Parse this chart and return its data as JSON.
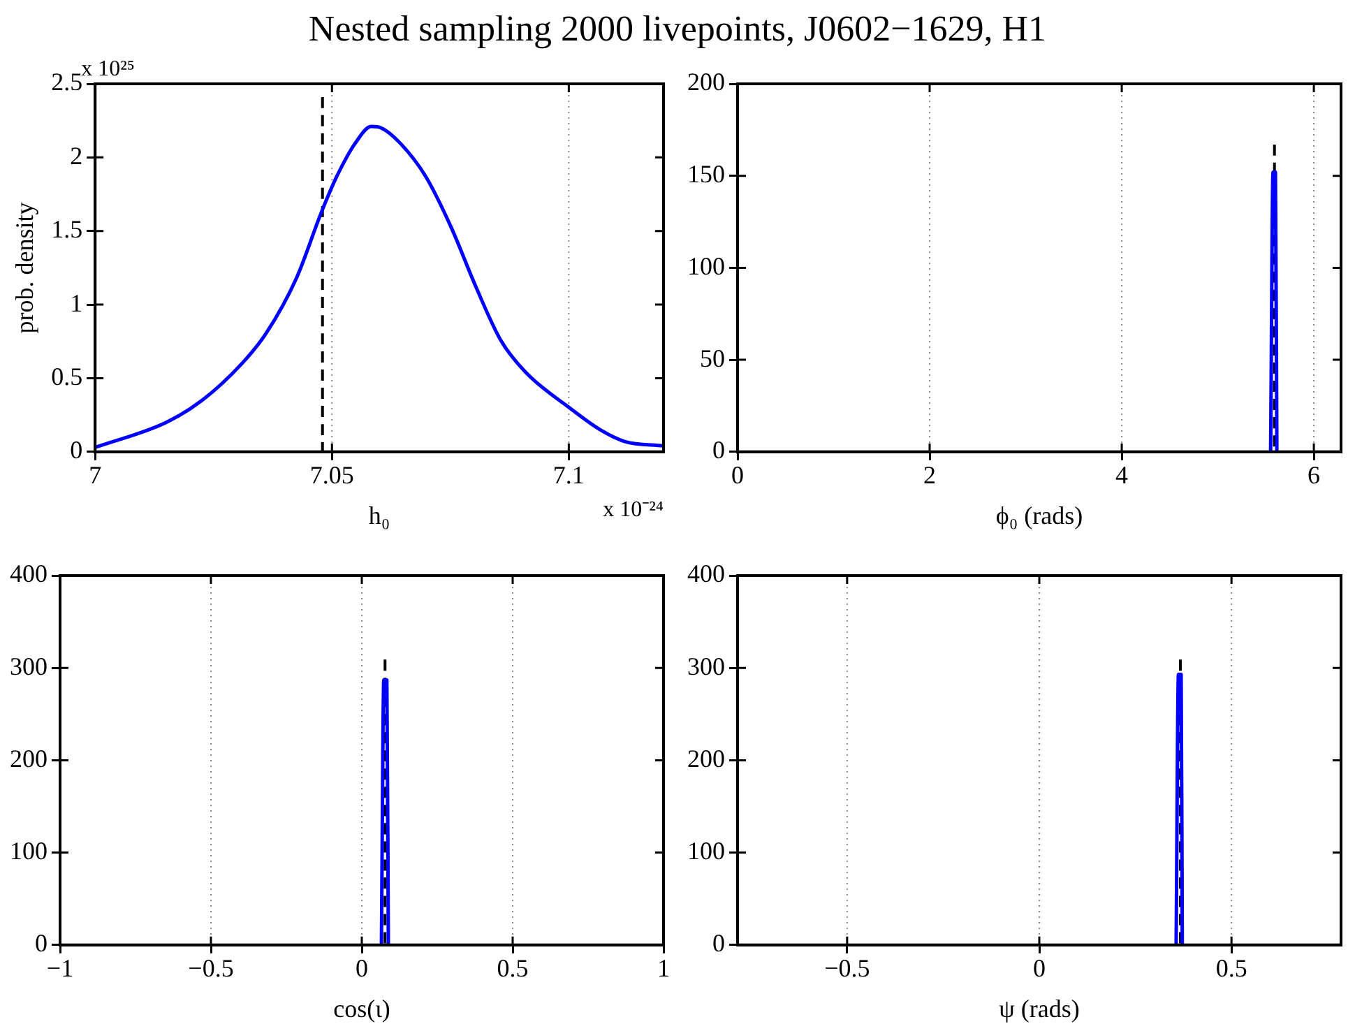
{
  "chart_data": [
    {
      "type": "line",
      "title": "Nested sampling 2000 livepoints, J0602−1629, H1",
      "xlabel": "h₀",
      "ylabel": "prob. density",
      "annotations": [
        "x 10²⁵",
        "x 10⁻²⁴"
      ],
      "xlim": [
        7,
        7.12
      ],
      "xticks": [
        7,
        7.05,
        7.1
      ],
      "ylim": [
        0,
        2.5
      ],
      "yticks": [
        0,
        0.5,
        1,
        1.5,
        2,
        2.5
      ],
      "grid": "x",
      "legend": false,
      "series": [
        {
          "color": "#0000ff",
          "x": [
            7.0,
            7.015,
            7.0226,
            7.031,
            7.036,
            7.0425,
            7.0478,
            7.051,
            7.0552,
            7.0583,
            7.0604,
            7.0646,
            7.0698,
            7.0751,
            7.0804,
            7.0856,
            7.0909,
            7.1001,
            7.1066,
            7.1118,
            7.12
          ],
          "values": [
            0.03,
            0.2,
            0.35,
            0.6,
            0.8,
            1.18,
            1.63,
            1.87,
            2.11,
            2.21,
            2.2,
            2.09,
            1.87,
            1.53,
            1.12,
            0.76,
            0.54,
            0.3,
            0.15,
            0.07,
            0.04
          ]
        },
        {
          "color": "#000000",
          "line_style": "dashed",
          "x": [
            7.048,
            7.048
          ],
          "values": [
            0,
            2.41
          ]
        }
      ]
    },
    {
      "type": "line",
      "xlabel": "ϕ₀ (rads)",
      "xlim": [
        0,
        6.283
      ],
      "xticks": [
        0,
        2,
        4,
        6
      ],
      "ylim": [
        0,
        200
      ],
      "yticks": [
        0,
        50,
        100,
        150,
        200
      ],
      "grid": "x",
      "legend": false,
      "series": [
        {
          "color": "#0000ff",
          "x": [
            5.55,
            5.575,
            5.6,
            5.615
          ],
          "values": [
            0,
            152,
            152,
            0
          ]
        },
        {
          "color": "#000000",
          "line_style": "dashed",
          "x": [
            5.59,
            5.59
          ],
          "values": [
            0,
            167
          ]
        }
      ]
    },
    {
      "type": "line",
      "xlabel": "cos(ι)",
      "xlim": [
        -1,
        1
      ],
      "xticks": [
        -1,
        -0.5,
        0,
        0.5,
        1
      ],
      "ylim": [
        0,
        400
      ],
      "yticks": [
        0,
        100,
        200,
        300,
        400
      ],
      "grid": "x",
      "legend": false,
      "series": [
        {
          "color": "#0000ff",
          "x": [
            0.065,
            0.073,
            0.083,
            0.088
          ],
          "values": [
            0,
            287,
            287,
            0
          ]
        },
        {
          "color": "#000000",
          "line_style": "dashed",
          "x": [
            0.077,
            0.077
          ],
          "values": [
            0,
            309
          ]
        }
      ]
    },
    {
      "type": "line",
      "xlabel": "ψ (rads)",
      "xlim": [
        -0.785,
        0.785
      ],
      "xticks": [
        -0.5,
        0,
        0.5
      ],
      "ylim": [
        0,
        400
      ],
      "yticks": [
        0,
        100,
        200,
        300,
        400
      ],
      "grid": "x",
      "legend": false,
      "series": [
        {
          "color": "#0000ff",
          "x": [
            0.356,
            0.362,
            0.369,
            0.372
          ],
          "values": [
            0,
            293,
            293,
            0
          ]
        },
        {
          "color": "#000000",
          "line_style": "dashed",
          "x": [
            0.367,
            0.367
          ],
          "values": [
            0,
            309
          ]
        }
      ]
    }
  ]
}
